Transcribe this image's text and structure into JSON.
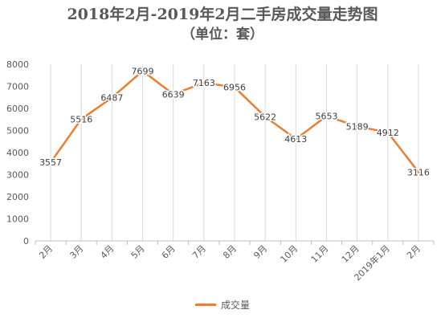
{
  "chart_data": {
    "type": "line",
    "title": "2018年2月-2019年2月二手房成交量走势图",
    "subtitle": "（单位：套）",
    "categories": [
      "2月",
      "3月",
      "4月",
      "5月",
      "6月",
      "7月",
      "8月",
      "9月",
      "10月",
      "11月",
      "12月",
      "2019年1月",
      "2月"
    ],
    "series": [
      {
        "name": "成交量",
        "color": "#ED7D31",
        "values": [
          3557,
          5516,
          6487,
          7699,
          6639,
          7163,
          6956,
          5622,
          4613,
          5653,
          5189,
          4912,
          3116
        ]
      }
    ],
    "y_ticks": [
      0,
      1000,
      2000,
      3000,
      4000,
      5000,
      6000,
      7000,
      8000
    ],
    "ylim": [
      0,
      8000
    ],
    "xlabel": "",
    "ylabel": "",
    "grid": "vertical gridlines only",
    "data_labels": true,
    "legend_position": "bottom"
  }
}
